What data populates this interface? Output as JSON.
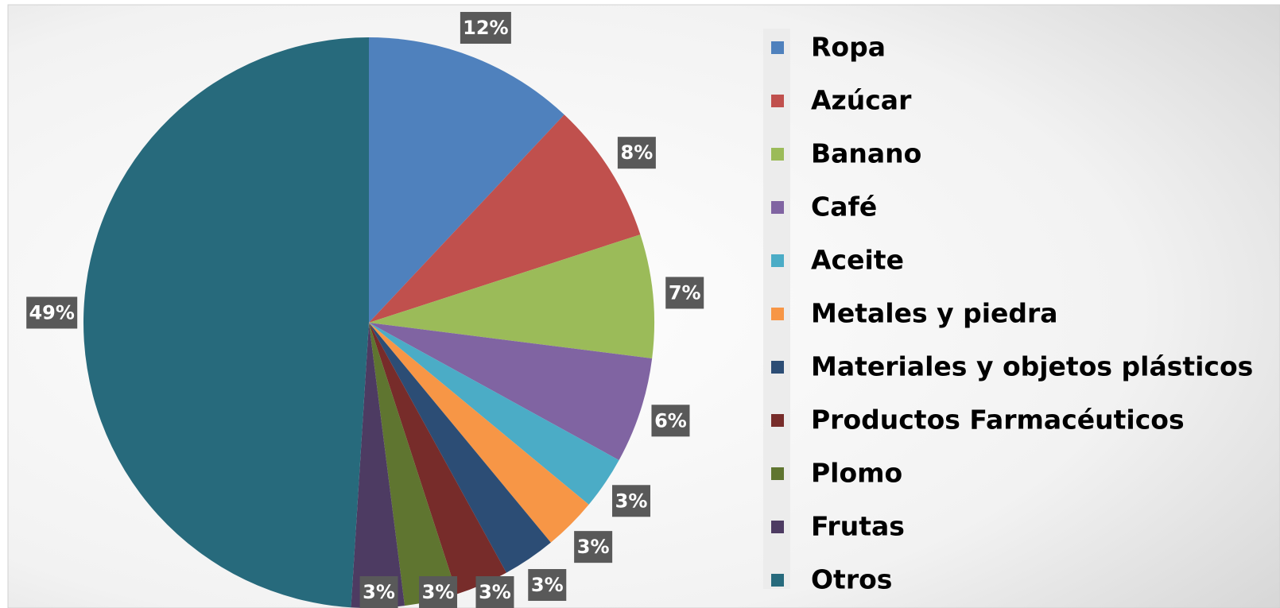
{
  "chart_data": {
    "type": "pie",
    "categories": [
      "Ropa",
      "Azúcar",
      "Banano",
      "Café",
      "Aceite",
      "Metales y piedra",
      "Materiales y objetos plásticos",
      "Productos Farmacéuticos",
      "Plomo",
      "Frutas",
      "Otros"
    ],
    "values": [
      12,
      8,
      7,
      6,
      3,
      3,
      3,
      3,
      3,
      3,
      49
    ],
    "value_labels": [
      "12%",
      "8%",
      "7%",
      "6%",
      "3%",
      "3%",
      "3%",
      "3%",
      "3%",
      "3%",
      "49%"
    ],
    "colors": [
      "#4f81bd",
      "#c0504d",
      "#9bbb59",
      "#8064a2",
      "#4bacc6",
      "#f79646",
      "#2c4d75",
      "#772c2a",
      "#5f7530",
      "#4d3b62",
      "#276a7c"
    ],
    "legend": "right"
  }
}
